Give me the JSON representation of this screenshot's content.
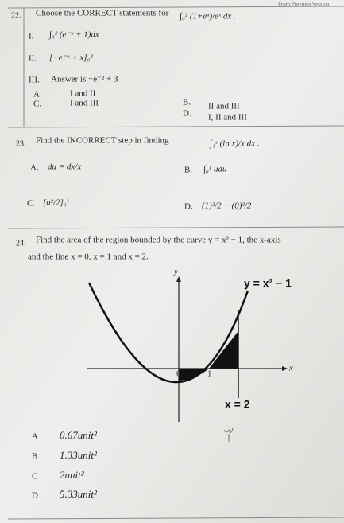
{
  "header": "From Previous Session",
  "questions": [
    {
      "number": "22.",
      "stem": "Choose the CORRECT statements for",
      "expression": "∫₀² (1+eˣ)/eˣ dx .",
      "statements": [
        {
          "label": "I.",
          "text": "∫₀² (e⁻ˣ + 1)dx"
        },
        {
          "label": "II.",
          "text": "[−e⁻ˣ + x]₀²"
        },
        {
          "label": "III.",
          "text": "Answer is −e⁻² + 3"
        }
      ],
      "options": [
        {
          "label": "A.",
          "text": "I and II"
        },
        {
          "label": "B.",
          "text": "II and III"
        },
        {
          "label": "C.",
          "text": "I and III"
        },
        {
          "label": "D.",
          "text": "I, II and III"
        }
      ]
    },
    {
      "number": "23.",
      "stem": "Find the INCORRECT step in finding",
      "expression": "∫₁ᵉ (ln x)/x dx .",
      "options": [
        {
          "label": "A.",
          "text": "du = dx/x"
        },
        {
          "label": "B.",
          "text": "∫₀¹ udu"
        },
        {
          "label": "C.",
          "text": "[u²/2]₀¹"
        },
        {
          "label": "D.",
          "text": "(1)²/2 − (0)²/2"
        }
      ]
    },
    {
      "number": "24.",
      "stem": "Find the area of the region bounded by the curve y = x² − 1, the x-axis",
      "stem_continued": "and the line x = 0, x = 1 and x = 2.",
      "graph": {
        "y_label": "y",
        "x_label": "x",
        "curve_label": "y = x² − 1",
        "origin_label": "0",
        "one_label": "1",
        "line_label": "x = 2"
      },
      "options": [
        {
          "label": "A",
          "text": "0.67unit²"
        },
        {
          "label": "B",
          "text": "1.33unit²"
        },
        {
          "label": "C",
          "text": "2unit²"
        },
        {
          "label": "D",
          "text": "5.33unit²"
        }
      ]
    }
  ]
}
